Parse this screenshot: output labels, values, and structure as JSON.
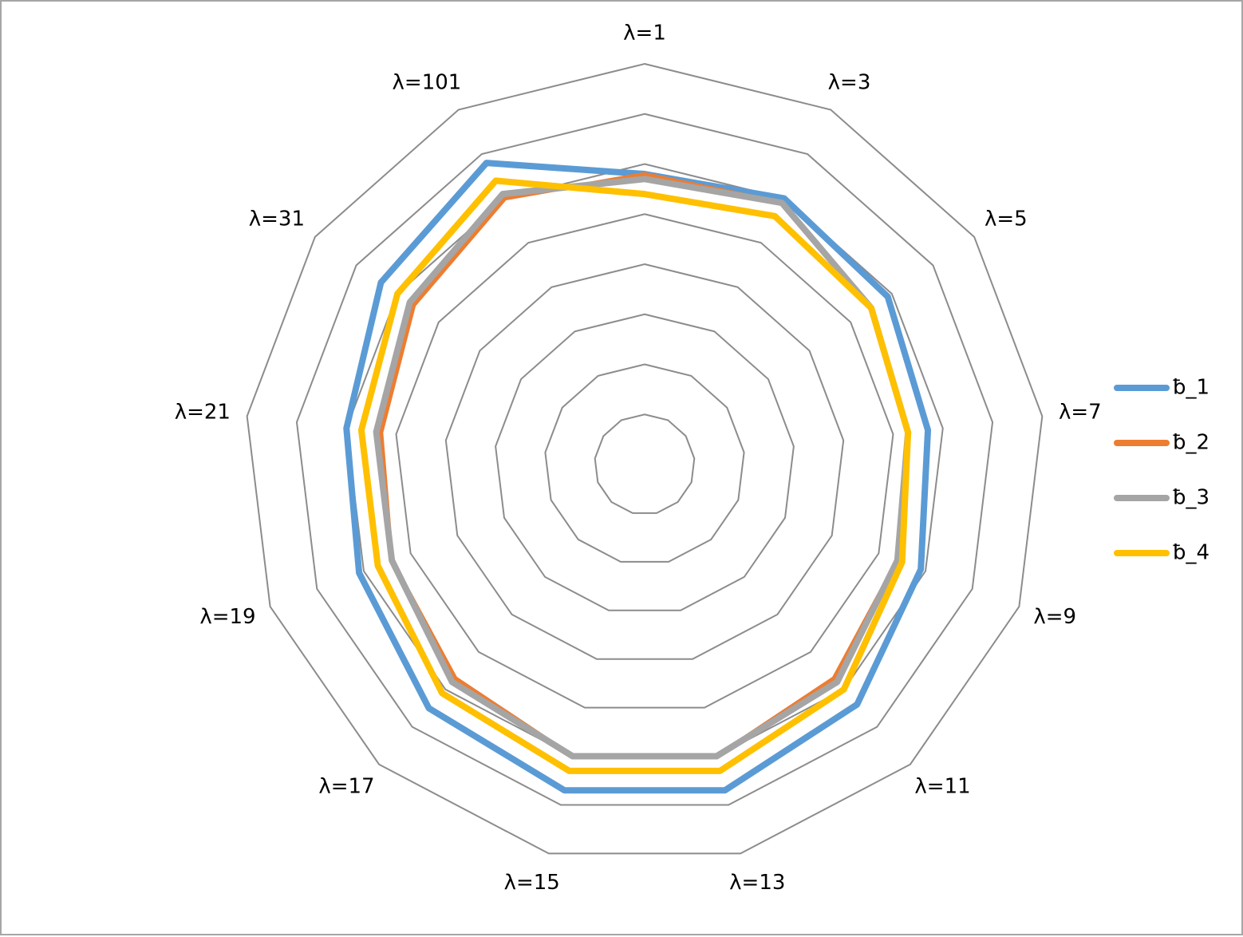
{
  "chart_data": {
    "type": "radar",
    "categories": [
      "λ=1",
      "λ=3",
      "λ=5",
      "λ=7",
      "λ=9",
      "λ=11",
      "λ=13",
      "λ=15",
      "λ=17",
      "λ=19",
      "λ=21",
      "λ=31",
      "λ=101"
    ],
    "ylim": [
      0,
      8
    ],
    "yticks": [
      1,
      2,
      3,
      4,
      5,
      6,
      7,
      8
    ],
    "grid": true,
    "legend": "right",
    "series": [
      {
        "name": "ƀ_1",
        "color": "#5b9bd5",
        "values": [
          5.8,
          6.0,
          5.9,
          5.7,
          5.9,
          6.4,
          6.7,
          6.7,
          6.5,
          6.1,
          6.0,
          6.4,
          6.8
        ]
      },
      {
        "name": "ƀ_2",
        "color": "#ed7d31",
        "values": [
          5.8,
          5.9,
          5.5,
          5.3,
          5.4,
          5.7,
          6.0,
          6.0,
          5.7,
          5.4,
          5.3,
          5.6,
          6.0
        ]
      },
      {
        "name": "ƀ_3",
        "color": "#a5a5a5",
        "values": [
          5.7,
          5.9,
          5.5,
          5.3,
          5.4,
          5.8,
          6.0,
          6.0,
          5.8,
          5.4,
          5.4,
          5.7,
          6.1
        ]
      },
      {
        "name": "ƀ_4",
        "color": "#ffc000",
        "values": [
          5.4,
          5.6,
          5.5,
          5.3,
          5.5,
          6.0,
          6.3,
          6.3,
          6.1,
          5.7,
          5.7,
          6.0,
          6.4
        ]
      }
    ]
  }
}
